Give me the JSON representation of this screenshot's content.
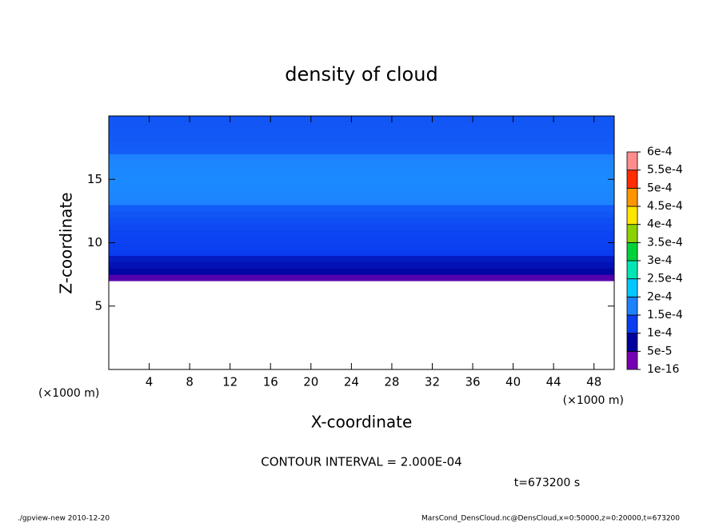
{
  "chart_data": {
    "type": "contour",
    "title": "density of cloud",
    "x_label": "X-coordinate",
    "y_label": "Z-coordinate",
    "x_unit_left": "(×1000 m)",
    "x_unit_right": "(×1000 m)",
    "contour_note": "CONTOUR INTERVAL = 2.000E-04",
    "time_label": "t=673200 s",
    "footer_left": "./gpview-new  2010-12-20",
    "footer_right": "MarsCond_DensCloud.nc@DensCloud,x=0:50000,z=0:20000,t=673200",
    "xlim": [
      0,
      50
    ],
    "xticks": [
      4,
      8,
      12,
      16,
      20,
      24,
      28,
      32,
      36,
      40,
      44,
      48
    ],
    "ylim": [
      0,
      20
    ],
    "yticks": [
      5,
      10,
      15
    ],
    "z": [
      7.25,
      7.75,
      8.25,
      8.75,
      9.25,
      9.75,
      10.25,
      10.75,
      11.25,
      11.75,
      12.25,
      12.75,
      13.25,
      13.75,
      14.25,
      14.75,
      15.25,
      15.75,
      16.25,
      16.75,
      17.25,
      17.75,
      18.25,
      18.75,
      19.25,
      19.75
    ],
    "values": [
      3e-05,
      6e-05,
      8e-05,
      9.5e-05,
      0.000102,
      0.000105,
      0.000108,
      0.000112,
      0.000118,
      0.000125,
      0.000135,
      0.000145,
      0.000152,
      0.000155,
      0.000158,
      0.00016,
      0.00016,
      0.000158,
      0.000155,
      0.00015,
      0.000148,
      0.000145,
      0.000142,
      0.00014,
      0.000138,
      0.000135
    ],
    "levels": [
      {
        "value": 1e-16,
        "label": "1e-16"
      },
      {
        "value": 5e-05,
        "label": "5e-5"
      },
      {
        "value": 0.0001,
        "label": "1e-4"
      },
      {
        "value": 0.00015,
        "label": "1.5e-4"
      },
      {
        "value": 0.0002,
        "label": "2e-4"
      },
      {
        "value": 0.00025,
        "label": "2.5e-4"
      },
      {
        "value": 0.0003,
        "label": "3e-4"
      },
      {
        "value": 0.00035,
        "label": "3.5e-4"
      },
      {
        "value": 0.0004,
        "label": "4e-4"
      },
      {
        "value": 0.00045,
        "label": "4.5e-4"
      },
      {
        "value": 0.0005,
        "label": "5e-4"
      },
      {
        "value": 0.00055,
        "label": "5.5e-4"
      },
      {
        "value": 0.0006,
        "label": "6e-4"
      }
    ],
    "colors": [
      "#7800b4",
      "#00009c",
      "#0a3cf0",
      "#1e82ff",
      "#00c8ff",
      "#00e6b4",
      "#00d23c",
      "#8cd200",
      "#ffe600",
      "#ff9600",
      "#ff2d00",
      "#ff8c8c"
    ]
  }
}
